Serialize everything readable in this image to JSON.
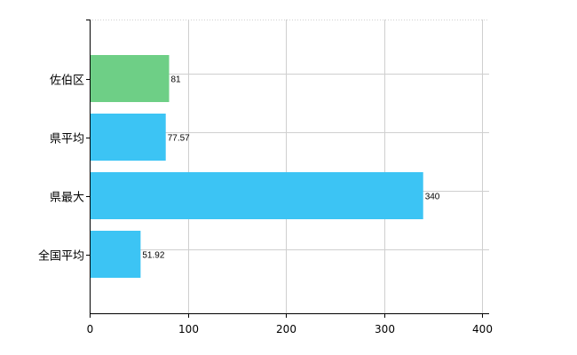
{
  "chart_data": {
    "type": "bar",
    "orientation": "horizontal",
    "categories": [
      "佐伯区",
      "県平均",
      "県最大",
      "全国平均"
    ],
    "values": [
      81,
      77.57,
      340,
      51.92
    ],
    "value_labels": [
      "81",
      "77.57",
      "340",
      "51.92"
    ],
    "bar_colors": [
      "#6ecf86",
      "#3cc4f4",
      "#3cc4f4",
      "#3cc4f4"
    ],
    "xlim": [
      0,
      400
    ],
    "x_ticks": [
      0,
      100,
      200,
      300,
      400
    ],
    "x_tick_labels": [
      "0",
      "100",
      "200",
      "300",
      "400"
    ],
    "grid": true,
    "title": "",
    "xlabel": "",
    "ylabel": ""
  }
}
